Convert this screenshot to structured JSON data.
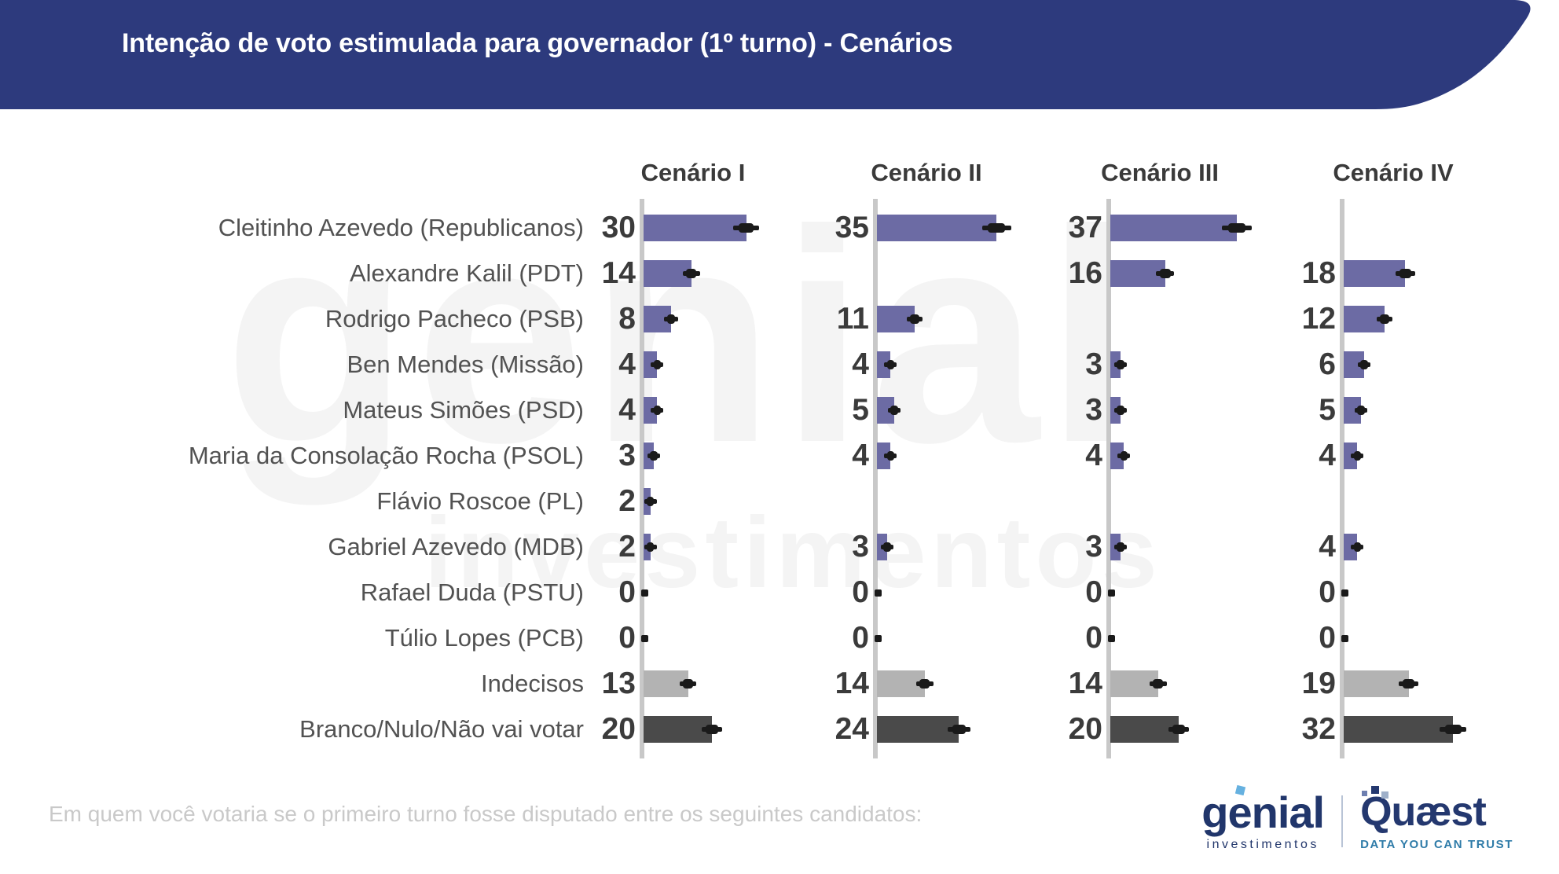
{
  "header": {
    "title": "Intenção de voto estimulada para governador (1º turno) - Cenários",
    "bg_color": "#2d3a7d",
    "text_color": "#ffffff"
  },
  "watermark": {
    "line1": "genial",
    "line2": "investimentos"
  },
  "chart_data": {
    "type": "bar",
    "orientation": "horizontal",
    "title": "Intenção de voto estimulada para governador (1º turno) - Cenários",
    "categories": [
      "Cleitinho Azevedo (Republicanos)",
      "Alexandre Kalil (PDT)",
      "Rodrigo Pacheco (PSB)",
      "Ben Mendes (Missão)",
      "Mateus Simões (PSD)",
      "Maria da Consolação Rocha (PSOL)",
      "Flávio Roscoe (PL)",
      "Gabriel Azevedo (MDB)",
      "Rafael Duda (PSTU)",
      "Túlio Lopes (PCB)",
      "Indecisos",
      "Branco/Nulo/Não vai votar"
    ],
    "series": [
      {
        "name": "Cenário I",
        "values": [
          30,
          14,
          8,
          4,
          4,
          3,
          2,
          2,
          0,
          0,
          13,
          20
        ]
      },
      {
        "name": "Cenário II",
        "values": [
          35,
          null,
          11,
          4,
          5,
          4,
          null,
          3,
          0,
          0,
          14,
          24
        ]
      },
      {
        "name": "Cenário III",
        "values": [
          37,
          16,
          null,
          3,
          3,
          4,
          null,
          3,
          0,
          0,
          14,
          20
        ]
      },
      {
        "name": "Cenário IV",
        "values": [
          null,
          18,
          12,
          6,
          5,
          4,
          null,
          4,
          0,
          0,
          19,
          32
        ]
      }
    ],
    "category_types": [
      "candidate",
      "candidate",
      "candidate",
      "candidate",
      "candidate",
      "candidate",
      "candidate",
      "candidate",
      "candidate",
      "candidate",
      "undecided",
      "blank"
    ],
    "colors": {
      "candidate": "#6c6ba4",
      "undecided": "#b3b3b3",
      "blank": "#4a4a4a",
      "axis": "#c8c8c8",
      "error_bar": "#1a1a1a",
      "value_text": "#3b3b3b",
      "label_text": "#525252"
    },
    "xlim": [
      0,
      40
    ],
    "grid": false,
    "legend": false,
    "error_bars": true
  },
  "footer": {
    "question": "Em quem você votaria se o primeiro turno fosse disputado entre os seguintes candidatos:",
    "genial_logo": {
      "word": "genial",
      "sub": "investimentos"
    },
    "quaest_logo": {
      "word": "Quæst",
      "sub": "DATA YOU CAN TRUST"
    }
  }
}
